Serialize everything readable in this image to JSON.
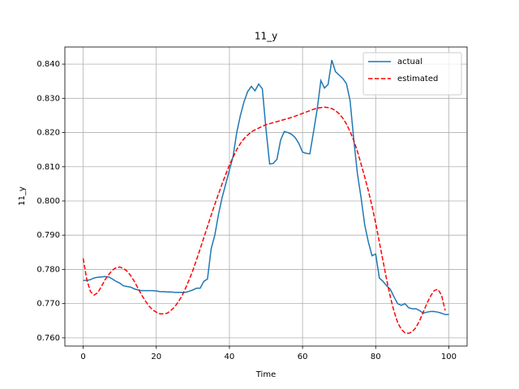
{
  "chart_data": {
    "type": "line",
    "title": "11_y",
    "x_label": "Time",
    "y_label": "11_y",
    "x": [
      0,
      1,
      2,
      3,
      4,
      5,
      6,
      7,
      8,
      9,
      10,
      11,
      12,
      13,
      14,
      15,
      16,
      17,
      18,
      19,
      20,
      21,
      22,
      23,
      24,
      25,
      26,
      27,
      28,
      29,
      30,
      31,
      32,
      33,
      34,
      35,
      36,
      37,
      38,
      39,
      40,
      41,
      42,
      43,
      44,
      45,
      46,
      47,
      48,
      49,
      50,
      51,
      52,
      53,
      54,
      55,
      56,
      57,
      58,
      59,
      60,
      61,
      62,
      63,
      64,
      65,
      66,
      67,
      68,
      69,
      70,
      71,
      72,
      73,
      74,
      75,
      76,
      77,
      78,
      79,
      80,
      81,
      82,
      83,
      84,
      85,
      86,
      87,
      88,
      89,
      90,
      91,
      92,
      93,
      94,
      95,
      96,
      97,
      98,
      99,
      100
    ],
    "series": [
      {
        "name": "actual",
        "color": "#1f77b4",
        "linestyle": "solid",
        "values": [
          0.7768,
          0.7768,
          0.777,
          0.7775,
          0.7777,
          0.7778,
          0.7779,
          0.7778,
          0.7772,
          0.7765,
          0.776,
          0.7752,
          0.775,
          0.7748,
          0.7743,
          0.774,
          0.7738,
          0.7738,
          0.7738,
          0.7738,
          0.7737,
          0.7735,
          0.7735,
          0.7734,
          0.7734,
          0.7733,
          0.7733,
          0.7733,
          0.7733,
          0.7736,
          0.774,
          0.7745,
          0.7745,
          0.7765,
          0.7772,
          0.786,
          0.79,
          0.796,
          0.801,
          0.805,
          0.809,
          0.813,
          0.82,
          0.825,
          0.829,
          0.832,
          0.8335,
          0.8322,
          0.8342,
          0.8328,
          0.821,
          0.8108,
          0.811,
          0.8122,
          0.8178,
          0.8203,
          0.82,
          0.8195,
          0.8185,
          0.8168,
          0.8143,
          0.8139,
          0.8138,
          0.8202,
          0.8268,
          0.8352,
          0.833,
          0.8341,
          0.8412,
          0.8378,
          0.8368,
          0.8358,
          0.8343,
          0.8293,
          0.818,
          0.808,
          0.801,
          0.793,
          0.788,
          0.784,
          0.7845,
          0.7775,
          0.7765,
          0.7752,
          0.7742,
          0.772,
          0.77,
          0.7695,
          0.77,
          0.7688,
          0.7685,
          0.7685,
          0.768,
          0.7672,
          0.7675,
          0.7677,
          0.7677,
          0.7675,
          0.7672,
          0.7668,
          0.7668
        ]
      },
      {
        "name": "estimated",
        "color": "#ff0000",
        "linestyle": "dashed",
        "values": [
          0.7832,
          0.777,
          0.7735,
          0.7725,
          0.7732,
          0.775,
          0.777,
          0.7785,
          0.7798,
          0.7805,
          0.7807,
          0.7803,
          0.7795,
          0.7782,
          0.7765,
          0.7745,
          0.7725,
          0.7708,
          0.7693,
          0.7682,
          0.7675,
          0.767,
          0.767,
          0.7672,
          0.768,
          0.769,
          0.7705,
          0.7722,
          0.7745,
          0.777,
          0.7797,
          0.7828,
          0.786,
          0.7893,
          0.7925,
          0.7958,
          0.799,
          0.802,
          0.805,
          0.8078,
          0.8105,
          0.8128,
          0.815,
          0.8168,
          0.8182,
          0.8193,
          0.8202,
          0.8208,
          0.8213,
          0.8218,
          0.8223,
          0.8226,
          0.8229,
          0.8232,
          0.8235,
          0.8238,
          0.8241,
          0.8244,
          0.8248,
          0.8252,
          0.8256,
          0.826,
          0.8264,
          0.8268,
          0.8271,
          0.8273,
          0.8274,
          0.8273,
          0.827,
          0.8264,
          0.8255,
          0.8242,
          0.8225,
          0.8203,
          0.8177,
          0.8145,
          0.8108,
          0.807,
          0.803,
          0.7985,
          0.7935,
          0.788,
          0.7825,
          0.777,
          0.772,
          0.7678,
          0.7645,
          0.7625,
          0.7615,
          0.7613,
          0.7618,
          0.763,
          0.765,
          0.7675,
          0.77,
          0.7722,
          0.7738,
          0.7742,
          0.7725,
          0.768,
          null
        ]
      }
    ],
    "xlim": [
      -5,
      105
    ],
    "xticks": [
      0,
      20,
      40,
      60,
      80,
      100
    ],
    "ylim": [
      0.7576,
      0.845
    ],
    "yticks": [
      {
        "value": 0.76,
        "label": "0.760"
      },
      {
        "value": 0.77,
        "label": "0.770"
      },
      {
        "value": 0.78,
        "label": "0.780"
      },
      {
        "value": 0.79,
        "label": "0.790"
      },
      {
        "value": 0.8,
        "label": "0.800"
      },
      {
        "value": 0.81,
        "label": "0.810"
      },
      {
        "value": 0.82,
        "label": "0.820"
      },
      {
        "value": 0.83,
        "label": "0.830"
      },
      {
        "value": 0.84,
        "label": "0.840"
      }
    ],
    "grid": true,
    "legend": "upper-right"
  }
}
